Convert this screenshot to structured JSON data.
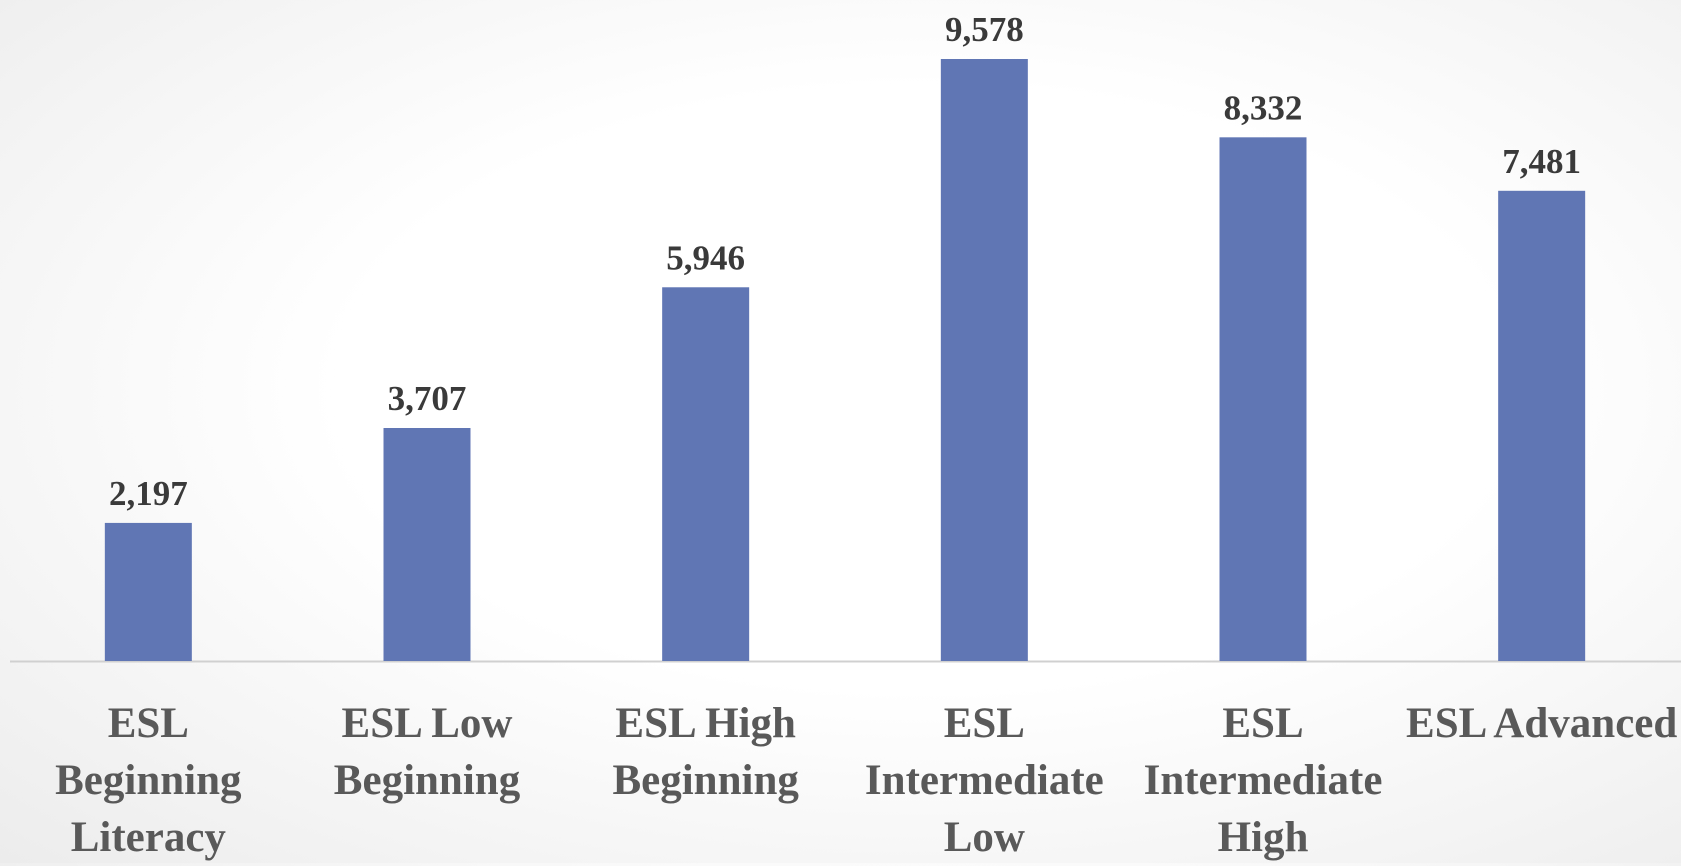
{
  "chart_data": {
    "type": "bar",
    "categories": [
      "ESL Beginning Literacy",
      "ESL Low Beginning",
      "ESL High Beginning",
      "ESL Intermediate Low",
      "ESL Intermediate High",
      "ESL Advanced"
    ],
    "values": [
      2197,
      3707,
      5946,
      9578,
      8332,
      7481
    ],
    "value_labels": [
      "2,197",
      "3,707",
      "5,946",
      "9,578",
      "8,332",
      "7,481"
    ],
    "color": "#6076b4"
  }
}
